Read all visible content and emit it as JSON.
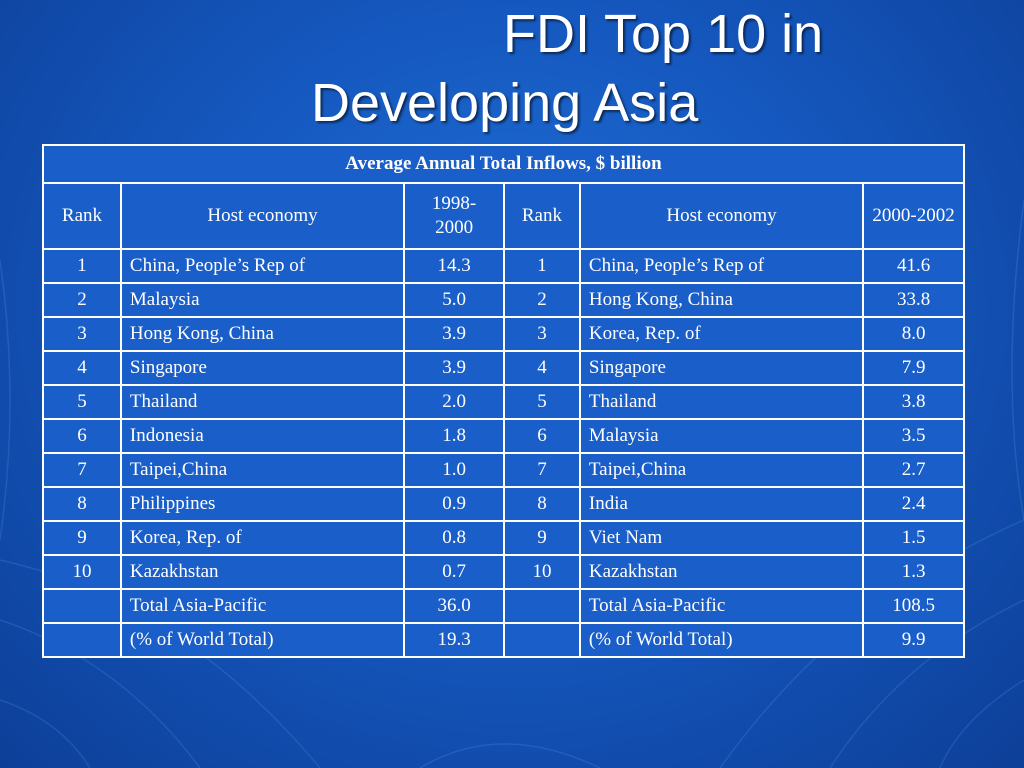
{
  "slide": {
    "title_line1": "FDI Top 10 in",
    "title_line2": "Developing Asia"
  },
  "table": {
    "caption": "Average Annual Total Inflows, $ billion",
    "headers": {
      "rank_a": "Rank",
      "economy_a": "Host economy",
      "period_a": "1998-2000",
      "rank_b": "Rank",
      "economy_b": "Host economy",
      "period_b": "2000-2002"
    },
    "rows": [
      {
        "rank_a": "1",
        "economy_a": "China, People’s Rep of",
        "value_a": "14.3",
        "rank_b": "1",
        "economy_b": "China, People’s Rep of",
        "value_b": "41.6"
      },
      {
        "rank_a": "2",
        "economy_a": "Malaysia",
        "value_a": "5.0",
        "rank_b": "2",
        "economy_b": "Hong Kong, China",
        "value_b": "33.8"
      },
      {
        "rank_a": "3",
        "economy_a": "Hong Kong, China",
        "value_a": "3.9",
        "rank_b": "3",
        "economy_b": "Korea, Rep. of",
        "value_b": "8.0"
      },
      {
        "rank_a": "4",
        "economy_a": "Singapore",
        "value_a": "3.9",
        "rank_b": "4",
        "economy_b": "Singapore",
        "value_b": "7.9"
      },
      {
        "rank_a": "5",
        "economy_a": "Thailand",
        "value_a": "2.0",
        "rank_b": "5",
        "economy_b": "Thailand",
        "value_b": "3.8"
      },
      {
        "rank_a": "6",
        "economy_a": "Indonesia",
        "value_a": "1.8",
        "rank_b": "6",
        "economy_b": "Malaysia",
        "value_b": "3.5"
      },
      {
        "rank_a": "7",
        "economy_a": "Taipei,China",
        "value_a": "1.0",
        "rank_b": "7",
        "economy_b": "Taipei,China",
        "value_b": "2.7"
      },
      {
        "rank_a": "8",
        "economy_a": "Philippines",
        "value_a": "0.9",
        "rank_b": "8",
        "economy_b": "India",
        "value_b": "2.4"
      },
      {
        "rank_a": "9",
        "economy_a": "Korea, Rep. of",
        "value_a": "0.8",
        "rank_b": "9",
        "economy_b": "Viet Nam",
        "value_b": "1.5"
      },
      {
        "rank_a": "10",
        "economy_a": "Kazakhstan",
        "value_a": "0.7",
        "rank_b": "10",
        "economy_b": "Kazakhstan",
        "value_b": "1.3"
      }
    ],
    "totals": [
      {
        "rank_a": "",
        "economy_a": "Total Asia-Pacific",
        "value_a": "36.0",
        "rank_b": "",
        "economy_b": "Total Asia-Pacific",
        "value_b": "108.5"
      },
      {
        "rank_a": "",
        "economy_a": "(% of World Total)",
        "value_a": "19.3",
        "rank_b": "",
        "economy_b": "(% of World Total)",
        "value_b": "9.9"
      }
    ]
  },
  "colors": {
    "background": "#1558bf",
    "table_fill": "#1a5fc9",
    "text": "#ffffff"
  }
}
